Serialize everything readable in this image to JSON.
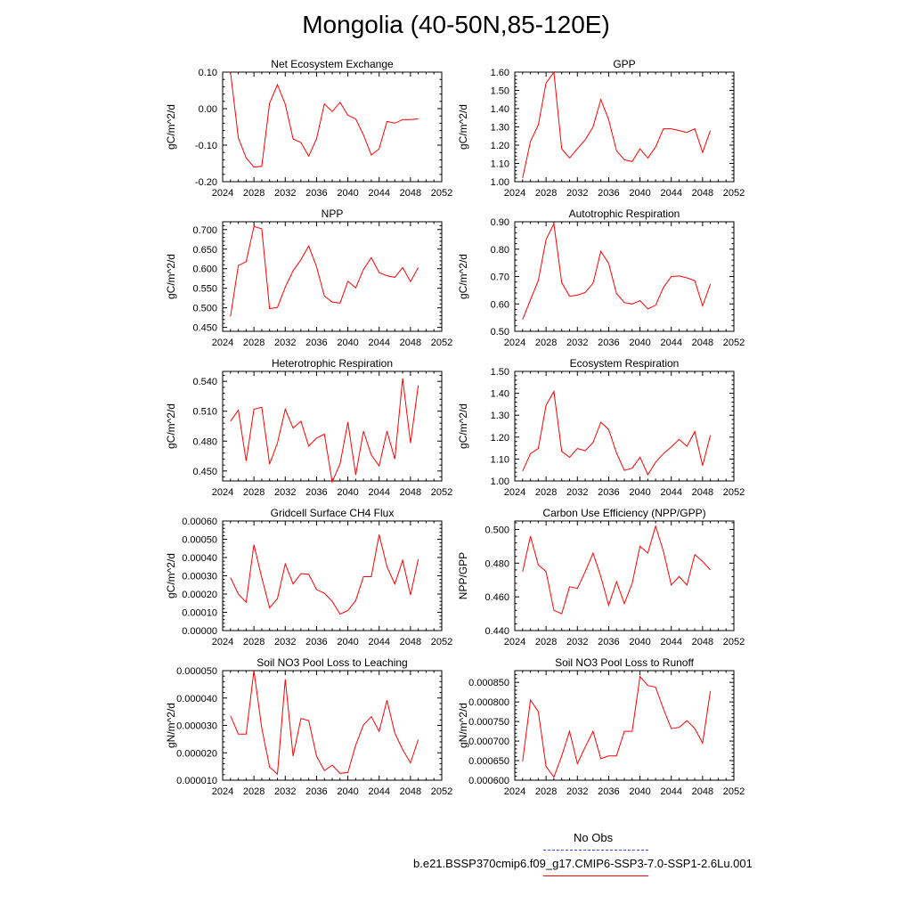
{
  "page": {
    "title": "Mongolia (40-50N,85-120E)"
  },
  "legend": {
    "obs_label": "No Obs",
    "model_label": "b.e21.BSSP370cmip6.f09_g17.CMIP6-SSP3-7.0-SSP1-2.6Lu.001",
    "obs_color": "#4444ff",
    "model_color": "#ff0000"
  },
  "chart_data": [
    {
      "type": "line",
      "title": "Net Ecosystem Exchange",
      "ylabel": "gC/m^2/d",
      "xlim": [
        2024,
        2052
      ],
      "xticks": [
        2024,
        2028,
        2032,
        2036,
        2040,
        2044,
        2048,
        2052
      ],
      "ylim": [
        -0.2,
        0.1
      ],
      "yticks": [
        "-0.20",
        "-0.10",
        "0.00",
        "0.10"
      ],
      "x": [
        2025,
        2026,
        2027,
        2028,
        2029,
        2030,
        2031,
        2032,
        2033,
        2034,
        2035,
        2036,
        2037,
        2038,
        2039,
        2040,
        2041,
        2042,
        2043,
        2044,
        2045,
        2046,
        2047,
        2048,
        2049
      ],
      "series": [
        {
          "color": "#ff0000",
          "values": [
            0.1,
            -0.08,
            -0.135,
            -0.16,
            -0.158,
            0.015,
            0.066,
            0.012,
            -0.083,
            -0.093,
            -0.13,
            -0.083,
            0.013,
            -0.008,
            0.017,
            -0.018,
            -0.028,
            -0.072,
            -0.127,
            -0.11,
            -0.035,
            -0.04,
            -0.03,
            -0.03,
            -0.028
          ]
        }
      ]
    },
    {
      "type": "line",
      "title": "GPP",
      "ylabel": "gC/m^2/d",
      "xlim": [
        2024,
        2052
      ],
      "xticks": [
        2024,
        2028,
        2032,
        2036,
        2040,
        2044,
        2048,
        2052
      ],
      "ylim": [
        1.0,
        1.6
      ],
      "yticks": [
        "1.00",
        "1.10",
        "1.20",
        "1.30",
        "1.40",
        "1.50",
        "1.60"
      ],
      "x": [
        2025,
        2026,
        2027,
        2028,
        2029,
        2030,
        2031,
        2032,
        2033,
        2034,
        2035,
        2036,
        2037,
        2038,
        2039,
        2040,
        2041,
        2042,
        2043,
        2044,
        2045,
        2046,
        2047,
        2048,
        2049
      ],
      "series": [
        {
          "color": "#ff0000",
          "values": [
            1.02,
            1.22,
            1.31,
            1.54,
            1.6,
            1.18,
            1.13,
            1.18,
            1.23,
            1.3,
            1.45,
            1.34,
            1.17,
            1.12,
            1.11,
            1.18,
            1.13,
            1.19,
            1.29,
            1.29,
            1.28,
            1.27,
            1.29,
            1.16,
            1.28
          ]
        }
      ]
    },
    {
      "type": "line",
      "title": "NPP",
      "ylabel": "gC/m^2/d",
      "xlim": [
        2024,
        2052
      ],
      "xticks": [
        2024,
        2028,
        2032,
        2036,
        2040,
        2044,
        2048,
        2052
      ],
      "ylim": [
        0.44,
        0.72
      ],
      "yticks": [
        "0.450",
        "0.500",
        "0.550",
        "0.600",
        "0.650",
        "0.700"
      ],
      "x": [
        2025,
        2026,
        2027,
        2028,
        2029,
        2030,
        2031,
        2032,
        2033,
        2034,
        2035,
        2036,
        2037,
        2038,
        2039,
        2040,
        2041,
        2042,
        2043,
        2044,
        2045,
        2046,
        2047,
        2048,
        2049
      ],
      "series": [
        {
          "color": "#ff0000",
          "values": [
            0.478,
            0.608,
            0.618,
            0.708,
            0.702,
            0.498,
            0.501,
            0.553,
            0.595,
            0.623,
            0.658,
            0.605,
            0.53,
            0.515,
            0.512,
            0.568,
            0.551,
            0.598,
            0.628,
            0.59,
            0.582,
            0.578,
            0.603,
            0.567,
            0.603
          ]
        }
      ]
    },
    {
      "type": "line",
      "title": "Autotrophic Respiration",
      "ylabel": "gC/m^2/d",
      "xlim": [
        2024,
        2052
      ],
      "xticks": [
        2024,
        2028,
        2032,
        2036,
        2040,
        2044,
        2048,
        2052
      ],
      "ylim": [
        0.5,
        0.9
      ],
      "yticks": [
        "0.50",
        "0.60",
        "0.70",
        "0.80",
        "0.90"
      ],
      "x": [
        2025,
        2026,
        2027,
        2028,
        2029,
        2030,
        2031,
        2032,
        2033,
        2034,
        2035,
        2036,
        2037,
        2038,
        2039,
        2040,
        2041,
        2042,
        2043,
        2044,
        2045,
        2046,
        2047,
        2048,
        2049
      ],
      "series": [
        {
          "color": "#ff0000",
          "values": [
            0.543,
            0.615,
            0.685,
            0.835,
            0.893,
            0.678,
            0.628,
            0.632,
            0.642,
            0.675,
            0.792,
            0.748,
            0.638,
            0.605,
            0.6,
            0.612,
            0.582,
            0.595,
            0.66,
            0.7,
            0.702,
            0.695,
            0.685,
            0.593,
            0.672
          ]
        }
      ]
    },
    {
      "type": "line",
      "title": "Heterotrophic Respiration",
      "ylabel": "gC/m^2/d",
      "xlim": [
        2024,
        2052
      ],
      "xticks": [
        2024,
        2028,
        2032,
        2036,
        2040,
        2044,
        2048,
        2052
      ],
      "ylim": [
        0.44,
        0.55
      ],
      "yticks": [
        "0.450",
        "0.480",
        "0.510",
        "0.540"
      ],
      "x": [
        2025,
        2026,
        2027,
        2028,
        2029,
        2030,
        2031,
        2032,
        2033,
        2034,
        2035,
        2036,
        2037,
        2038,
        2039,
        2040,
        2041,
        2042,
        2043,
        2044,
        2045,
        2046,
        2047,
        2048,
        2049
      ],
      "series": [
        {
          "color": "#ff0000",
          "values": [
            0.5,
            0.511,
            0.46,
            0.512,
            0.514,
            0.457,
            0.478,
            0.512,
            0.493,
            0.5,
            0.475,
            0.483,
            0.487,
            0.439,
            0.457,
            0.499,
            0.446,
            0.49,
            0.466,
            0.455,
            0.49,
            0.462,
            0.543,
            0.478,
            0.536
          ]
        }
      ]
    },
    {
      "type": "line",
      "title": "Ecosystem Respiration",
      "ylabel": "gC/m^2/d",
      "xlim": [
        2024,
        2052
      ],
      "xticks": [
        2024,
        2028,
        2032,
        2036,
        2040,
        2044,
        2048,
        2052
      ],
      "ylim": [
        1.0,
        1.5
      ],
      "yticks": [
        "1.00",
        "1.10",
        "1.20",
        "1.30",
        "1.40",
        "1.50"
      ],
      "x": [
        2025,
        2026,
        2027,
        2028,
        2029,
        2030,
        2031,
        2032,
        2033,
        2034,
        2035,
        2036,
        2037,
        2038,
        2039,
        2040,
        2041,
        2042,
        2043,
        2044,
        2045,
        2046,
        2047,
        2048,
        2049
      ],
      "series": [
        {
          "color": "#ff0000",
          "values": [
            1.045,
            1.125,
            1.148,
            1.345,
            1.408,
            1.135,
            1.108,
            1.148,
            1.138,
            1.175,
            1.268,
            1.235,
            1.128,
            1.048,
            1.058,
            1.108,
            1.028,
            1.085,
            1.125,
            1.155,
            1.19,
            1.158,
            1.225,
            1.07,
            1.208
          ]
        }
      ]
    },
    {
      "type": "line",
      "title": "Gridcell Surface CH4 Flux",
      "ylabel": "gC/m^2/d",
      "xlim": [
        2024,
        2052
      ],
      "xticks": [
        2024,
        2028,
        2032,
        2036,
        2040,
        2044,
        2048,
        2052
      ],
      "ylim": [
        0.0,
        0.0006
      ],
      "yticks": [
        "0.00000",
        "0.00010",
        "0.00020",
        "0.00030",
        "0.00040",
        "0.00050",
        "0.00060"
      ],
      "x": [
        2025,
        2026,
        2027,
        2028,
        2029,
        2030,
        2031,
        2032,
        2033,
        2034,
        2035,
        2036,
        2037,
        2038,
        2039,
        2040,
        2041,
        2042,
        2043,
        2044,
        2045,
        2046,
        2047,
        2048,
        2049
      ],
      "series": [
        {
          "color": "#ff0000",
          "values": [
            0.00029,
            0.0002,
            0.000155,
            0.00047,
            0.00029,
            0.000125,
            0.000175,
            0.000365,
            0.000255,
            0.000312,
            0.000308,
            0.000225,
            0.000205,
            0.00016,
            9e-05,
            0.00011,
            0.000165,
            0.000295,
            0.000295,
            0.000525,
            0.00035,
            0.000255,
            0.000385,
            0.000195,
            0.00039
          ]
        }
      ]
    },
    {
      "type": "line",
      "title": "Carbon Use Efficiency (NPP/GPP)",
      "ylabel": "NPP/GPP",
      "xlim": [
        2024,
        2052
      ],
      "xticks": [
        2024,
        2028,
        2032,
        2036,
        2040,
        2044,
        2048,
        2052
      ],
      "ylim": [
        0.44,
        0.505
      ],
      "yticks": [
        "0.440",
        "0.460",
        "0.480",
        "0.500"
      ],
      "x": [
        2025,
        2026,
        2027,
        2028,
        2029,
        2030,
        2031,
        2032,
        2033,
        2034,
        2035,
        2036,
        2037,
        2038,
        2039,
        2040,
        2041,
        2042,
        2043,
        2044,
        2045,
        2046,
        2047,
        2048,
        2049
      ],
      "series": [
        {
          "color": "#ff0000",
          "values": [
            0.475,
            0.496,
            0.479,
            0.475,
            0.452,
            0.45,
            0.466,
            0.465,
            0.475,
            0.486,
            0.472,
            0.455,
            0.469,
            0.456,
            0.468,
            0.49,
            0.486,
            0.502,
            0.487,
            0.467,
            0.472,
            0.467,
            0.485,
            0.481,
            0.476
          ]
        }
      ]
    },
    {
      "type": "line",
      "title": "Soil NO3 Pool Loss to Leaching",
      "ylabel": "gN/m^2/d",
      "xlim": [
        2024,
        2052
      ],
      "xticks": [
        2024,
        2028,
        2032,
        2036,
        2040,
        2044,
        2048,
        2052
      ],
      "ylim": [
        1e-05,
        5e-05
      ],
      "yticks": [
        "0.000010",
        "0.000020",
        "0.000030",
        "0.000040",
        "0.000050"
      ],
      "x": [
        2025,
        2026,
        2027,
        2028,
        2029,
        2030,
        2031,
        2032,
        2033,
        2034,
        2035,
        2036,
        2037,
        2038,
        2039,
        2040,
        2041,
        2042,
        2043,
        2044,
        2045,
        2046,
        2047,
        2048,
        2049
      ],
      "series": [
        {
          "color": "#ff0000",
          "values": [
            3.35e-05,
            2.68e-05,
            2.68e-05,
            5e-05,
            2.9e-05,
            1.48e-05,
            1.22e-05,
            4.68e-05,
            1.88e-05,
            3.25e-05,
            3.18e-05,
            1.88e-05,
            1.35e-05,
            1.55e-05,
            1.25e-05,
            1.28e-05,
            2.28e-05,
            3.02e-05,
            3.32e-05,
            2.78e-05,
            3.92e-05,
            2.72e-05,
            2.12e-05,
            1.63e-05,
            2.48e-05
          ]
        }
      ]
    },
    {
      "type": "line",
      "title": "Soil NO3 Pool Loss to Runoff",
      "ylabel": "gN/m^2/d",
      "xlim": [
        2024,
        2052
      ],
      "xticks": [
        2024,
        2028,
        2032,
        2036,
        2040,
        2044,
        2048,
        2052
      ],
      "ylim": [
        0.0006,
        0.00088
      ],
      "yticks": [
        "0.000600",
        "0.000650",
        "0.000700",
        "0.000750",
        "0.000800",
        "0.000850"
      ],
      "x": [
        2025,
        2026,
        2027,
        2028,
        2029,
        2030,
        2031,
        2032,
        2033,
        2034,
        2035,
        2036,
        2037,
        2038,
        2039,
        2040,
        2041,
        2042,
        2043,
        2044,
        2045,
        2046,
        2047,
        2048,
        2049
      ],
      "series": [
        {
          "color": "#ff0000",
          "values": [
            0.000648,
            0.000805,
            0.000775,
            0.000635,
            0.000608,
            0.000662,
            0.000725,
            0.000642,
            0.000685,
            0.000725,
            0.000655,
            0.000662,
            0.000662,
            0.000725,
            0.000725,
            0.000865,
            0.000842,
            0.000838,
            0.000782,
            0.000732,
            0.000735,
            0.000752,
            0.000732,
            0.000695,
            0.000828
          ]
        }
      ]
    }
  ]
}
